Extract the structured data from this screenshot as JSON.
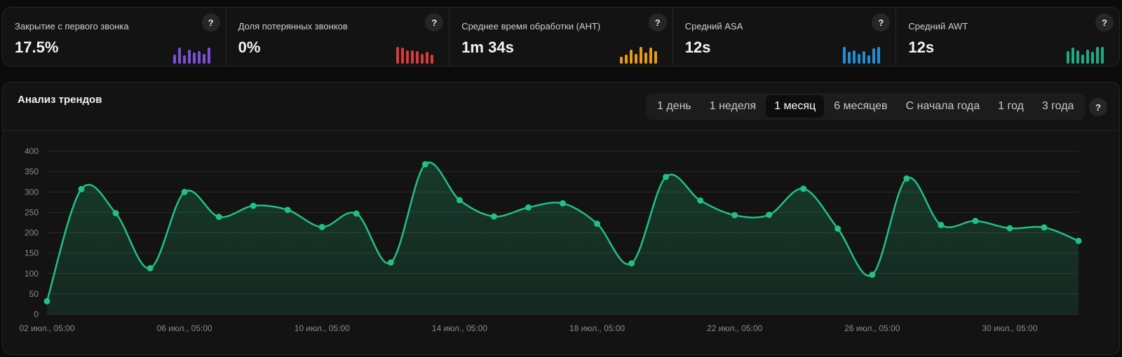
{
  "colors": {
    "accent": "#22c081",
    "purple": "#7b4fd9",
    "red": "#d93a3a",
    "orange": "#e89a1a",
    "blue": "#1f8fd6",
    "teal": "#1fa985"
  },
  "kpis": [
    {
      "label": "Закрытие с первого звонка",
      "value": "17.5%",
      "help": "?",
      "color_key": "purple",
      "bars": [
        0.55,
        0.95,
        0.5,
        0.85,
        0.65,
        0.75,
        0.6,
        0.95
      ]
    },
    {
      "label": "Доля потерянных звонков",
      "value": "0%",
      "help": "?",
      "color_key": "red",
      "bars": [
        1.0,
        0.95,
        0.8,
        0.8,
        0.75,
        0.6,
        0.7,
        0.55
      ]
    },
    {
      "label": "Среднее время обработки (AHT)",
      "value": "1m 34s",
      "help": "?",
      "color_key": "orange",
      "bars": [
        0.4,
        0.55,
        0.85,
        0.6,
        1.0,
        0.65,
        0.95,
        0.75
      ]
    },
    {
      "label": "Средний ASA",
      "value": "12s",
      "help": "?",
      "color_key": "blue",
      "bars": [
        1.0,
        0.7,
        0.8,
        0.6,
        0.75,
        0.5,
        0.9,
        1.0
      ]
    },
    {
      "label": "Средний AWT",
      "value": "12s",
      "help": "?",
      "color_key": "teal",
      "bars": [
        0.75,
        0.95,
        0.8,
        0.55,
        0.85,
        0.7,
        1.0,
        1.0
      ]
    }
  ],
  "trend": {
    "title": "Анализ трендов",
    "help": "?",
    "ranges": [
      "1 день",
      "1 неделя",
      "1 месяц",
      "6 месяцев",
      "С начала года",
      "1 год",
      "3 года"
    ],
    "active_range": "1 месяц"
  },
  "chart_data": {
    "type": "area",
    "title": "",
    "ylim": [
      0,
      400
    ],
    "y_ticks": [
      0,
      50,
      100,
      150,
      200,
      250,
      300,
      350,
      400
    ],
    "grid": true,
    "x_tick_labels": [
      "02 июл., 05:00",
      "06 июл., 05:00",
      "10 июл., 05:00",
      "14 июл., 05:00",
      "18 июл., 05:00",
      "22 июл., 05:00",
      "26 июл., 05:00",
      "30 июл., 05:00"
    ],
    "x_tick_interval_days": 4,
    "point_interval_days": 1,
    "series": [
      {
        "values": [
          32,
          307,
          248,
          113,
          300,
          239,
          266,
          256,
          214,
          247,
          127,
          368,
          280,
          240,
          262,
          272,
          222,
          125,
          337,
          279,
          243,
          244,
          308,
          210,
          97,
          333,
          219,
          229,
          211,
          213,
          180
        ]
      }
    ]
  }
}
